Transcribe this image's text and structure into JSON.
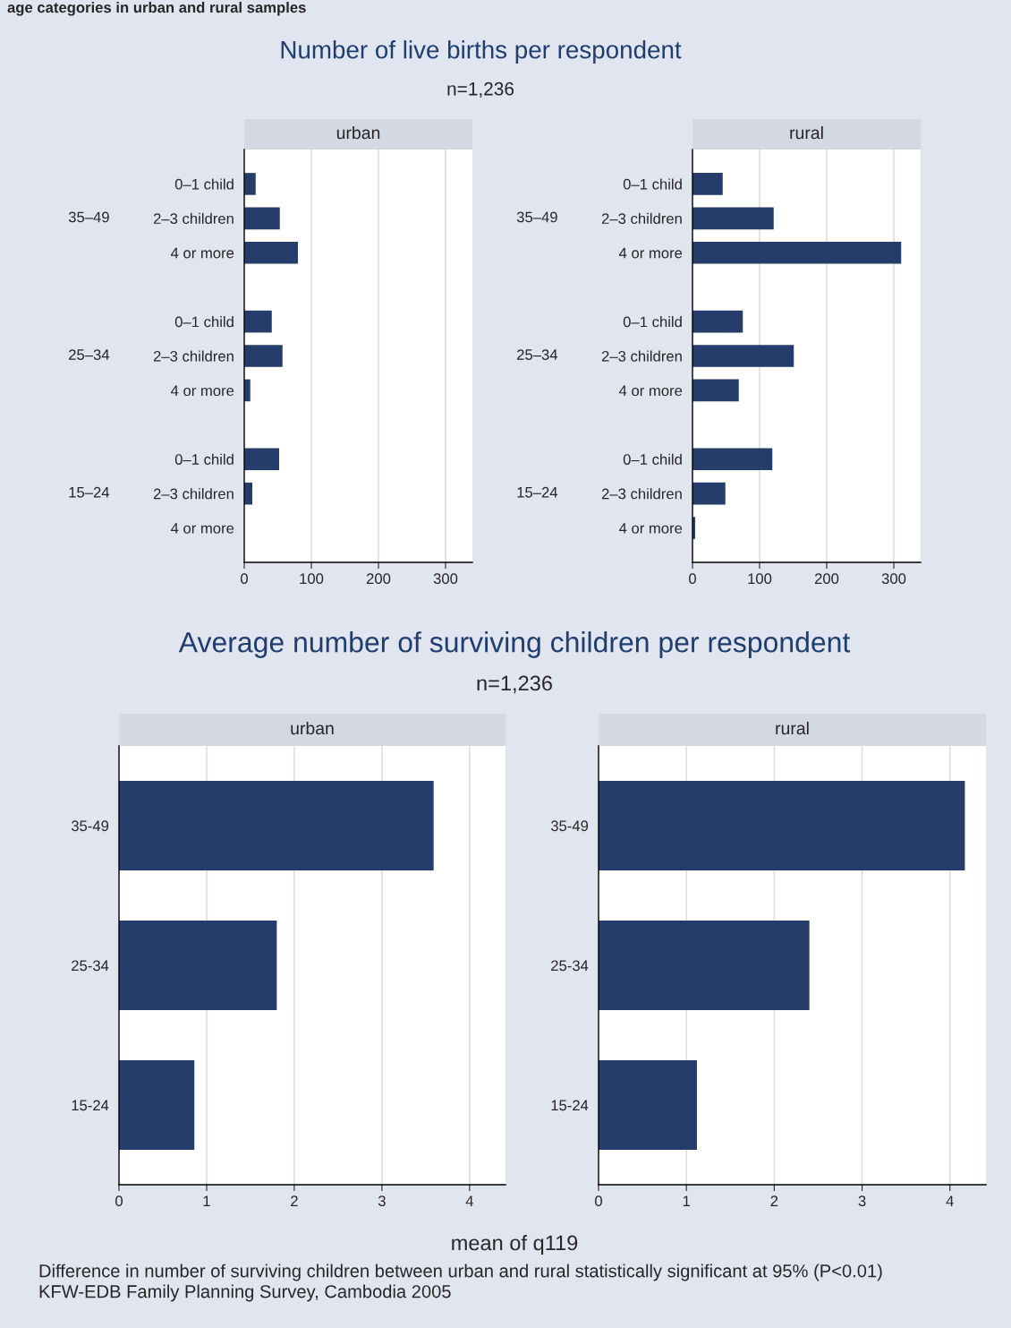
{
  "chart_data": [
    {
      "type": "bar",
      "orientation": "horizontal",
      "title": "urban",
      "color": "#263d6b",
      "grid": "x",
      "categories": [
        "0–1 child",
        "2–3 children",
        "4 or more",
        null,
        "0–1 child",
        "2–3 children",
        "4 or more",
        null,
        "0–1 child",
        "2–3 children",
        "4 or more"
      ],
      "values": [
        17,
        53,
        80,
        null,
        41,
        57,
        9,
        null,
        52,
        12,
        0
      ],
      "xlim": [
        0,
        340
      ],
      "xticks": [
        0,
        100,
        200,
        300
      ],
      "annotations": [
        "age categories in urban and rural samples",
        "Number of live births per respondent",
        "n=1,236",
        "35–49",
        "25–34",
        "15–24"
      ]
    },
    {
      "type": "bar",
      "orientation": "horizontal",
      "title": "rural",
      "color": "#263d6b",
      "grid": "x",
      "categories": [
        "0–1 child",
        "2–3 children",
        "4 or more",
        null,
        "0–1 child",
        "2–3 children",
        "4 or more",
        null,
        "0–1 child",
        "2–3 children",
        "4 or more"
      ],
      "values": [
        45,
        121,
        311,
        null,
        75,
        151,
        69,
        null,
        119,
        49,
        4
      ],
      "xlim": [
        0,
        340
      ],
      "xticks": [
        0,
        100,
        200,
        300
      ],
      "annotations": [
        "35–49",
        "25–34",
        "15–24"
      ]
    },
    {
      "type": "bar",
      "orientation": "horizontal",
      "title": "urban",
      "color": "#263d6b",
      "grid": "x",
      "categories": [
        "35-49",
        "25-34",
        "15-24"
      ],
      "values": [
        3.59,
        1.8,
        0.86
      ],
      "xlim": [
        0,
        4.41
      ],
      "xticks": [
        0,
        1,
        2,
        3,
        4
      ],
      "xlabel": "mean of q119",
      "annotations": [
        "Average number of surviving children per respondent",
        "n=1,236"
      ]
    },
    {
      "type": "bar",
      "orientation": "horizontal",
      "title": "rural",
      "color": "#263d6b",
      "grid": "x",
      "categories": [
        "35-49",
        "25-34",
        "15-24"
      ],
      "values": [
        4.17,
        2.4,
        1.12
      ],
      "xlim": [
        0,
        4.41
      ],
      "xticks": [
        0,
        1,
        2,
        3,
        4
      ],
      "annotations": [
        "Difference in number of surviving children between urban and rural statistically significant at 95% (P<0.01)",
        "KFW-EDB Family Planning Survey, Cambodia 2005"
      ]
    }
  ]
}
